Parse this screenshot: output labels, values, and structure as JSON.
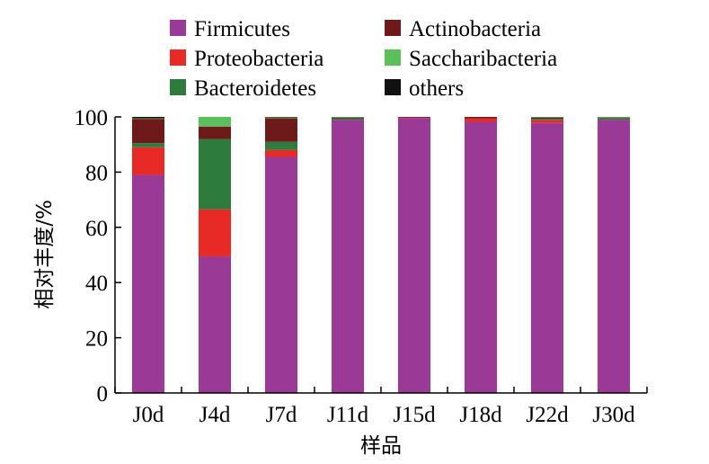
{
  "chart_data": {
    "type": "bar",
    "stacked": true,
    "title": "",
    "xlabel": "样品",
    "ylabel": "相对丰度/%",
    "ylim": [
      0,
      100
    ],
    "yticks": [
      "0",
      "20",
      "40",
      "60",
      "80",
      "100"
    ],
    "grid": false,
    "legend_position": "top",
    "categories": [
      "J0d",
      "J4d",
      "J7d",
      "J11d",
      "J15d",
      "J18d",
      "J22d",
      "J30d"
    ],
    "series": [
      {
        "name": "Firmicutes",
        "color": "#9b3a96",
        "values": [
          79,
          49.5,
          85.5,
          99,
          99.6,
          98.2,
          97.8,
          99
        ]
      },
      {
        "name": "Proteobacteria",
        "color": "#e82a27",
        "values": [
          10,
          17,
          2.5,
          0,
          0.1,
          1.3,
          1,
          0
        ]
      },
      {
        "name": "Bacteroidetes",
        "color": "#2f7a3d",
        "values": [
          1.5,
          25.5,
          3,
          0.5,
          0,
          0,
          0.5,
          0.6
        ]
      },
      {
        "name": "Actinobacteria",
        "color": "#6e1a1a",
        "values": [
          8.8,
          4.5,
          8.5,
          0.2,
          0.3,
          0.5,
          0.4,
          0.2
        ]
      },
      {
        "name": "Saccharibacteria",
        "color": "#5cbf5c",
        "values": [
          0.2,
          3.5,
          0.3,
          0.2,
          0,
          0,
          0.2,
          0.2
        ]
      },
      {
        "name": "others",
        "color": "#111111",
        "values": [
          0.5,
          0,
          0.2,
          0.1,
          0,
          0,
          0.1,
          0
        ]
      }
    ]
  }
}
